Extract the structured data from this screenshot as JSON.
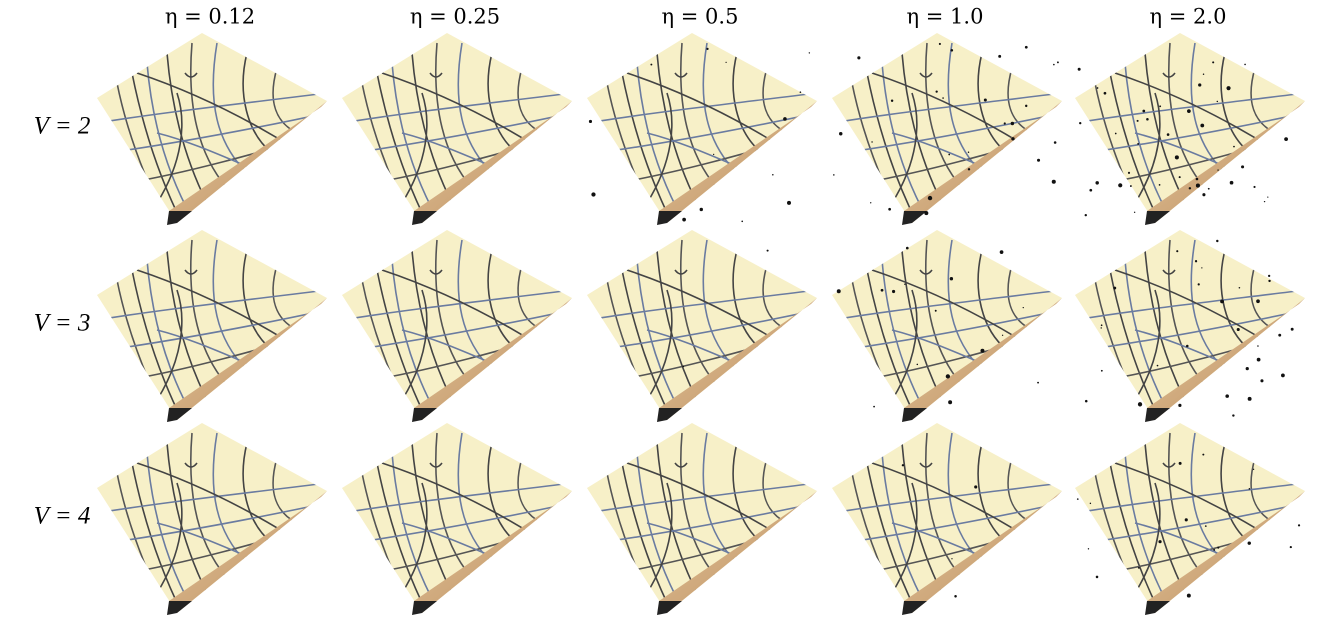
{
  "figure": {
    "columns": [
      "η = 0.12",
      "η = 0.25",
      "η = 0.5",
      "η = 1.0",
      "η = 2.0"
    ],
    "rows": [
      "V = 2",
      "V = 3",
      "V = 4"
    ]
  }
}
